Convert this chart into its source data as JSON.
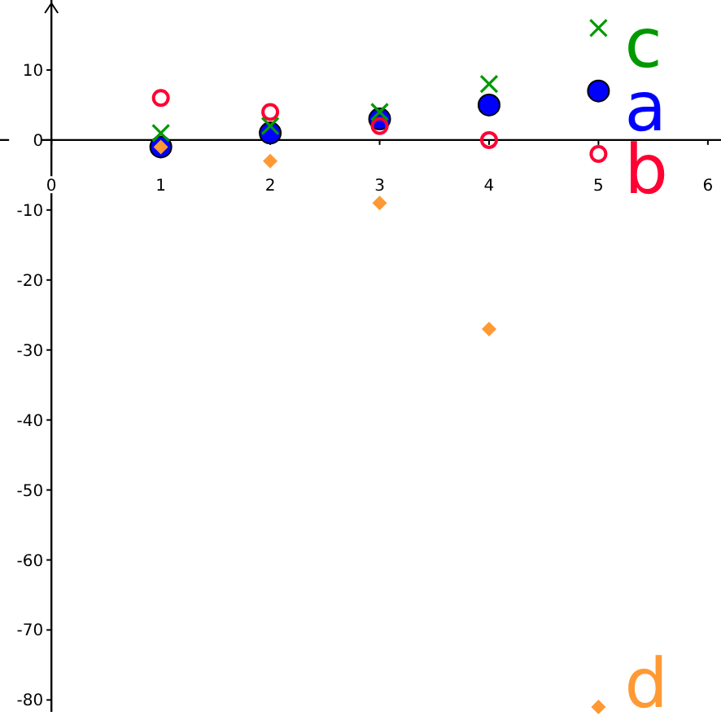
{
  "chart_data": {
    "type": "scatter",
    "x": [
      1,
      2,
      3,
      4,
      5
    ],
    "xlim": [
      -0.47,
      6.12
    ],
    "ylim": [
      -81.7,
      20
    ],
    "xticks": [
      0,
      1,
      2,
      3,
      4,
      5,
      6
    ],
    "yticks": [
      -80,
      -70,
      -60,
      -50,
      -40,
      -30,
      -20,
      -10,
      0,
      10
    ],
    "grid": false,
    "series": [
      {
        "name": "a",
        "color": "#0000ff",
        "marker": "circle",
        "values": [
          -1,
          1,
          3,
          5,
          7
        ]
      },
      {
        "name": "b",
        "color": "#ff0033",
        "marker": "circle-open",
        "values": [
          6,
          4,
          2,
          0,
          -2
        ]
      },
      {
        "name": "d",
        "color": "#ff9933",
        "marker": "diamond",
        "values": [
          -1,
          -3,
          -9,
          -27,
          -81
        ]
      },
      {
        "name": "c",
        "color": "#009900",
        "marker": "cross",
        "values": [
          1,
          2,
          4,
          8,
          16
        ]
      }
    ]
  }
}
